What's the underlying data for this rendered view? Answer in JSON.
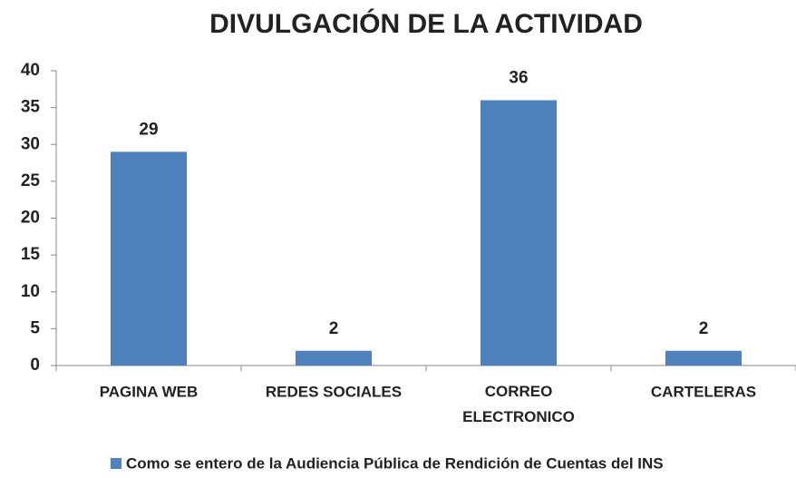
{
  "chart_data": {
    "type": "bar",
    "title": "DIVULGACIÓN DE LA ACTIVIDAD",
    "categories": [
      "PAGINA WEB",
      "REDES SOCIALES",
      "CORREO ELECTRONICO",
      "CARTELERAS"
    ],
    "series": [
      {
        "name": "Como se entero de la Audiencia Pública de Rendición de Cuentas del INS",
        "color": "#4f81bd",
        "values": [
          29,
          2,
          36,
          2
        ]
      }
    ],
    "ylim": [
      0,
      40
    ],
    "yticks": [
      0,
      5,
      10,
      15,
      20,
      25,
      30,
      35,
      40
    ],
    "grid": false,
    "legend": "bottom"
  }
}
